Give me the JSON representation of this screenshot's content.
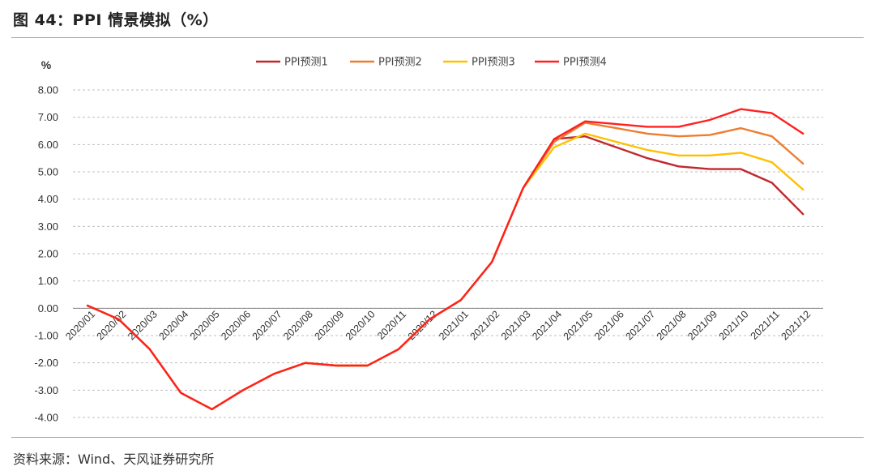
{
  "header": {
    "title": "图 44：PPI 情景模拟（%）"
  },
  "footer": {
    "source": "资料来源：Wind、天风证券研究所"
  },
  "colors": {
    "accent_rule": "#e8903a",
    "grid": "#bfbfbf",
    "axis": "#888888"
  },
  "chart_data": {
    "type": "line",
    "title": "",
    "ylabel": "%",
    "xlabel": "",
    "ylim": [
      -4,
      8
    ],
    "yticks": [
      8,
      7,
      6,
      5,
      4,
      3,
      2,
      1,
      0,
      -1,
      -2,
      -3,
      -4
    ],
    "ytick_labels": [
      "8.00",
      "7.00",
      "6.00",
      "5.00",
      "4.00",
      "3.00",
      "2.00",
      "1.00",
      "0.00",
      "-1.00",
      "-2.00",
      "-3.00",
      "-4.00"
    ],
    "grid": "horizontal dashed",
    "legend_position": "top-center",
    "categories": [
      "2020/01",
      "2020/02",
      "2020/03",
      "2020/04",
      "2020/05",
      "2020/06",
      "2020/07",
      "2020/08",
      "2020/09",
      "2020/10",
      "2020/11",
      "2020/12",
      "2021/01",
      "2021/02",
      "2021/03",
      "2021/04",
      "2021/05",
      "2021/06",
      "2021/07",
      "2021/08",
      "2021/09",
      "2021/10",
      "2021/11",
      "2021/12"
    ],
    "series": [
      {
        "name": "PPI预测1",
        "color": "#c0282d",
        "values": [
          0.1,
          -0.4,
          -1.5,
          -3.1,
          -3.7,
          -3.0,
          -2.4,
          -2.0,
          -2.1,
          -2.1,
          -1.5,
          -0.4,
          0.3,
          1.7,
          4.4,
          6.2,
          6.3,
          5.9,
          5.5,
          5.2,
          5.1,
          5.1,
          4.6,
          3.45
        ]
      },
      {
        "name": "PPI预测2",
        "color": "#ed7d31",
        "values": [
          0.1,
          -0.4,
          -1.5,
          -3.1,
          -3.7,
          -3.0,
          -2.4,
          -2.0,
          -2.1,
          -2.1,
          -1.5,
          -0.4,
          0.3,
          1.7,
          4.4,
          6.1,
          6.8,
          6.6,
          6.4,
          6.3,
          6.35,
          6.6,
          6.3,
          5.3
        ]
      },
      {
        "name": "PPI预测3",
        "color": "#ffc000",
        "values": [
          0.1,
          -0.4,
          -1.5,
          -3.1,
          -3.7,
          -3.0,
          -2.4,
          -2.0,
          -2.1,
          -2.1,
          -1.5,
          -0.4,
          0.3,
          1.7,
          4.4,
          5.9,
          6.4,
          6.1,
          5.8,
          5.6,
          5.6,
          5.7,
          5.35,
          4.35
        ]
      },
      {
        "name": "PPI预测4",
        "color": "#ff2020",
        "values": [
          0.1,
          -0.4,
          -1.5,
          -3.1,
          -3.7,
          -3.0,
          -2.4,
          -2.0,
          -2.1,
          -2.1,
          -1.5,
          -0.4,
          0.3,
          1.7,
          4.4,
          6.2,
          6.85,
          6.75,
          6.65,
          6.65,
          6.9,
          7.3,
          7.15,
          6.4
        ]
      }
    ]
  }
}
